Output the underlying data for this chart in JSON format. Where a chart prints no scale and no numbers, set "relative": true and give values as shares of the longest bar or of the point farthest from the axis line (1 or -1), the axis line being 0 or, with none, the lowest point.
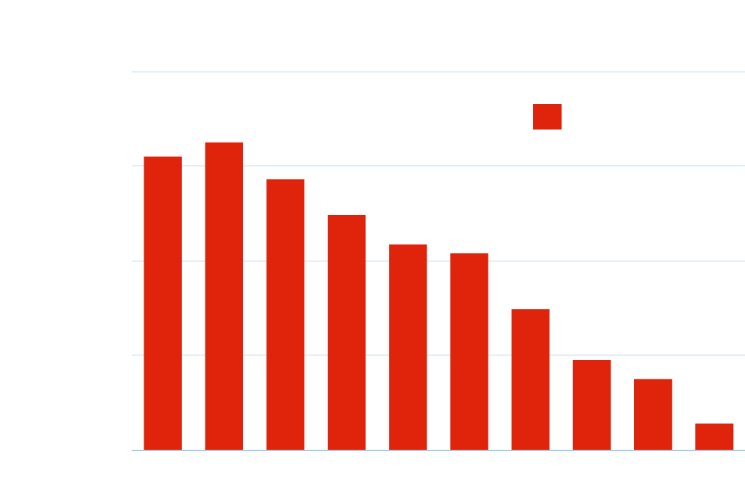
{
  "chart_data": {
    "type": "bar",
    "relative": true,
    "categories": [
      null,
      null,
      null,
      null,
      null,
      null,
      null,
      null,
      null,
      null
    ],
    "series": [
      {
        "color": "#e0240b",
        "values": [
          0.954,
          1,
          0.88,
          0.764,
          0.668,
          0.639,
          0.458,
          0.292,
          0.23,
          0.085
        ]
      }
    ],
    "grid": "y"
  }
}
